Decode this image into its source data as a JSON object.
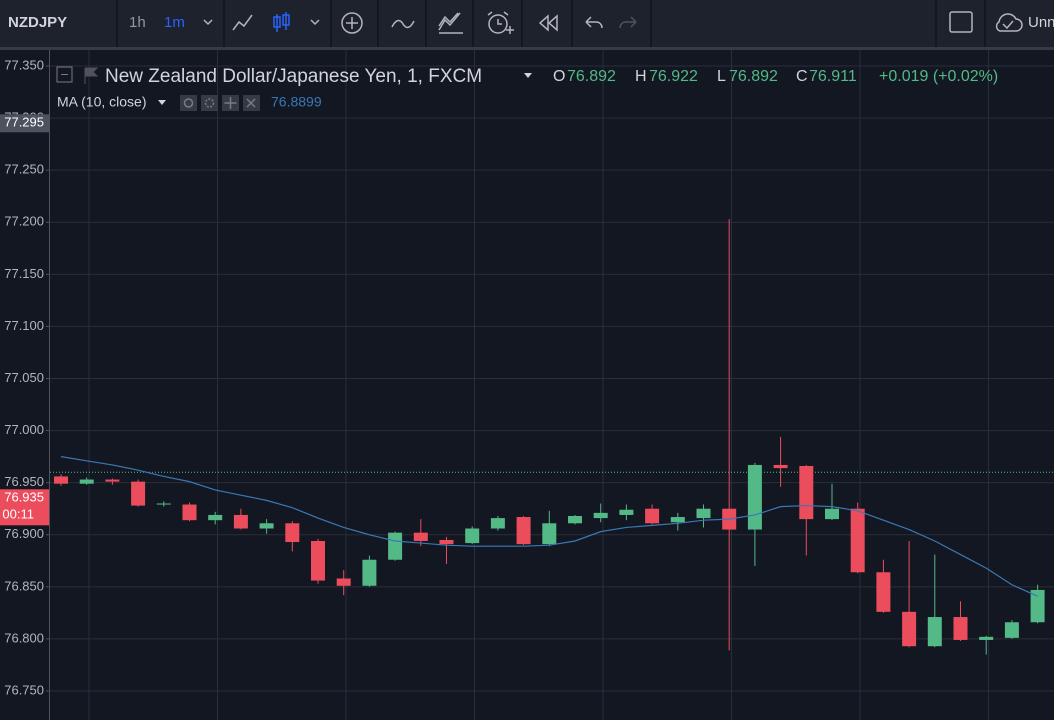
{
  "toolbar": {
    "symbol": "NZDJPY",
    "intervals": [
      "1h",
      "1m"
    ],
    "layout_name": "Unn"
  },
  "chart_data": {
    "type": "candlestick",
    "legend": {
      "title": "New Zealand Dollar/Japanese Yen, 1, FXCM",
      "o_label": "O",
      "o": "76.892",
      "h_label": "H",
      "h": "76.922",
      "l_label": "L",
      "l": "76.892",
      "c_label": "C",
      "c": "76.911",
      "change": "+0.019 (+0.02%)"
    },
    "up_color": "#53b987",
    "down_color": "#eb4d5c",
    "open": [
      76.956,
      76.949,
      76.953,
      76.951,
      76.929,
      76.929,
      76.914,
      76.919,
      76.906,
      76.911,
      76.894,
      76.858,
      76.851,
      76.876,
      76.902,
      76.895,
      76.892,
      76.906,
      76.917,
      76.891,
      76.911,
      76.916,
      76.919,
      76.925,
      76.912,
      76.916,
      76.925,
      76.905,
      76.967,
      76.966,
      76.915,
      76.925,
      76.864,
      76.826,
      76.793,
      76.821,
      76.799,
      76.801,
      76.816
    ],
    "high": [
      76.958,
      76.955,
      76.954,
      76.953,
      76.932,
      76.931,
      76.922,
      76.925,
      76.915,
      76.913,
      76.896,
      76.866,
      76.88,
      76.903,
      76.915,
      76.898,
      76.908,
      76.918,
      76.918,
      76.923,
      76.919,
      76.93,
      76.929,
      76.929,
      76.921,
      76.929,
      77.203,
      76.969,
      76.994,
      76.967,
      76.949,
      76.931,
      76.876,
      76.894,
      76.881,
      76.836,
      76.803,
      76.818,
      76.852
    ],
    "low": [
      76.947,
      76.948,
      76.948,
      76.927,
      76.927,
      76.913,
      76.91,
      76.905,
      76.901,
      76.884,
      76.853,
      76.842,
      76.85,
      76.875,
      76.889,
      76.872,
      76.891,
      76.904,
      76.89,
      76.889,
      76.91,
      76.912,
      76.914,
      76.91,
      76.904,
      76.907,
      76.789,
      76.87,
      76.946,
      76.88,
      76.914,
      76.863,
      76.825,
      76.792,
      76.792,
      76.798,
      76.785,
      76.8,
      76.815
    ],
    "close": [
      76.949,
      76.953,
      76.951,
      76.928,
      76.93,
      76.914,
      76.919,
      76.906,
      76.911,
      76.893,
      76.856,
      76.851,
      76.876,
      76.902,
      76.894,
      76.891,
      76.906,
      76.916,
      76.891,
      76.911,
      76.918,
      76.921,
      76.924,
      76.911,
      76.917,
      76.925,
      76.905,
      76.967,
      76.964,
      76.915,
      76.925,
      76.864,
      76.826,
      76.793,
      76.821,
      76.799,
      76.802,
      76.816,
      76.847
    ],
    "ma": {
      "name": "MA (10, close)",
      "value_label": "76.8899",
      "color": "#3a78b5",
      "values": [
        76.975,
        76.971,
        76.967,
        76.962,
        76.956,
        76.951,
        76.943,
        76.938,
        76.933,
        76.926,
        76.916,
        76.907,
        76.9,
        76.894,
        76.892,
        76.89,
        76.889,
        76.889,
        76.889,
        76.89,
        76.894,
        76.903,
        76.907,
        76.909,
        76.911,
        76.914,
        76.915,
        76.919,
        76.927,
        76.928,
        76.927,
        76.923,
        76.914,
        76.905,
        76.894,
        76.881,
        76.868,
        76.852,
        76.841
      ]
    },
    "ylim": [
      76.75,
      77.35
    ],
    "yticks": [
      {
        "value": 77.35,
        "label": "77.350"
      },
      {
        "value": 77.3,
        "label": "77.300"
      },
      {
        "value": 77.25,
        "label": "77.250"
      },
      {
        "value": 77.2,
        "label": "77.200"
      },
      {
        "value": 77.15,
        "label": "77.150"
      },
      {
        "value": 77.1,
        "label": "77.100"
      },
      {
        "value": 77.05,
        "label": "77.050"
      },
      {
        "value": 77.0,
        "label": "77.000"
      },
      {
        "value": 76.95,
        "label": "76.950"
      },
      {
        "value": 76.9,
        "label": "76.900"
      },
      {
        "value": 76.85,
        "label": "76.850"
      },
      {
        "value": 76.8,
        "label": "76.800"
      },
      {
        "value": 76.75,
        "label": "76.750"
      }
    ],
    "grid": true,
    "price_line": 76.96,
    "last_price": 76.935,
    "countdown": "00:11",
    "crosshair_price": 77.295
  }
}
